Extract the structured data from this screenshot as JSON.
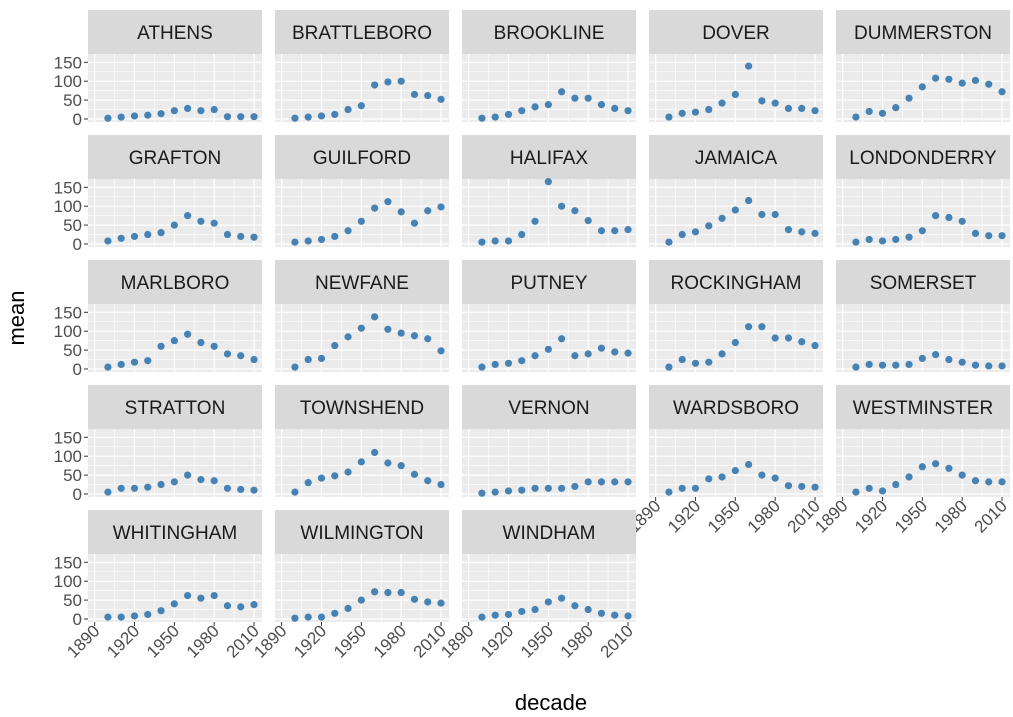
{
  "x_label": "decade",
  "y_label": "mean",
  "scales": {
    "xlim": [
      1885,
      2016
    ],
    "ylim": [
      -8,
      172
    ],
    "xticks": [
      1890,
      1920,
      1950,
      1980,
      2010
    ],
    "yticks": [
      0,
      50,
      100,
      150
    ],
    "color": "#4682b4",
    "grid": true
  },
  "chart_data": [
    {
      "type": "scatter",
      "title": "ATHENS",
      "x": [
        1900,
        1910,
        1920,
        1930,
        1940,
        1950,
        1960,
        1970,
        1980,
        1990,
        2000,
        2010
      ],
      "values": [
        2,
        5,
        8,
        10,
        14,
        22,
        28,
        22,
        25,
        6,
        6,
        6
      ]
    },
    {
      "type": "scatter",
      "title": "BRATTLEBORO",
      "x": [
        1900,
        1910,
        1920,
        1930,
        1940,
        1950,
        1960,
        1970,
        1980,
        1990,
        2000,
        2010
      ],
      "values": [
        2,
        5,
        8,
        12,
        25,
        35,
        90,
        98,
        100,
        65,
        62,
        52
      ]
    },
    {
      "type": "scatter",
      "title": "BROOKLINE",
      "x": [
        1900,
        1910,
        1920,
        1930,
        1940,
        1950,
        1960,
        1970,
        1980,
        1990,
        2000,
        2010
      ],
      "values": [
        2,
        5,
        12,
        22,
        32,
        38,
        72,
        55,
        55,
        38,
        28,
        22
      ]
    },
    {
      "type": "scatter",
      "title": "DOVER",
      "x": [
        1900,
        1910,
        1920,
        1930,
        1940,
        1950,
        1960,
        1970,
        1980,
        1990,
        2000,
        2010
      ],
      "values": [
        5,
        15,
        18,
        25,
        42,
        65,
        140,
        48,
        42,
        28,
        28,
        22
      ]
    },
    {
      "type": "scatter",
      "title": "DUMMERSTON",
      "x": [
        1900,
        1910,
        1920,
        1930,
        1940,
        1950,
        1960,
        1970,
        1980,
        1990,
        2000,
        2010
      ],
      "values": [
        5,
        20,
        15,
        30,
        55,
        85,
        108,
        105,
        95,
        102,
        92,
        72
      ]
    },
    {
      "type": "scatter",
      "title": "GRAFTON",
      "x": [
        1900,
        1910,
        1920,
        1930,
        1940,
        1950,
        1960,
        1970,
        1980,
        1990,
        2000,
        2010
      ],
      "values": [
        8,
        15,
        20,
        25,
        30,
        50,
        75,
        60,
        55,
        25,
        20,
        18
      ]
    },
    {
      "type": "scatter",
      "title": "GUILFORD",
      "x": [
        1900,
        1910,
        1920,
        1930,
        1940,
        1950,
        1960,
        1970,
        1980,
        1990,
        2000,
        2010
      ],
      "values": [
        5,
        8,
        12,
        20,
        35,
        60,
        95,
        112,
        85,
        55,
        88,
        98
      ]
    },
    {
      "type": "scatter",
      "title": "HALIFAX",
      "x": [
        1900,
        1910,
        1920,
        1930,
        1940,
        1950,
        1960,
        1970,
        1980,
        1990,
        2000,
        2010
      ],
      "values": [
        5,
        8,
        8,
        25,
        60,
        165,
        100,
        88,
        62,
        35,
        35,
        38
      ]
    },
    {
      "type": "scatter",
      "title": "JAMAICA",
      "x": [
        1900,
        1910,
        1920,
        1930,
        1940,
        1950,
        1960,
        1970,
        1980,
        1990,
        2000,
        2010
      ],
      "values": [
        5,
        25,
        32,
        48,
        68,
        90,
        115,
        78,
        78,
        38,
        32,
        28
      ]
    },
    {
      "type": "scatter",
      "title": "LONDONDERRY",
      "x": [
        1900,
        1910,
        1920,
        1930,
        1940,
        1950,
        1960,
        1970,
        1980,
        1990,
        2000,
        2010
      ],
      "values": [
        5,
        12,
        8,
        12,
        18,
        35,
        75,
        70,
        60,
        28,
        22,
        22
      ]
    },
    {
      "type": "scatter",
      "title": "MARLBORO",
      "x": [
        1900,
        1910,
        1920,
        1930,
        1940,
        1950,
        1960,
        1970,
        1980,
        1990,
        2000,
        2010
      ],
      "values": [
        5,
        12,
        18,
        22,
        60,
        75,
        92,
        70,
        60,
        40,
        35,
        25
      ]
    },
    {
      "type": "scatter",
      "title": "NEWFANE",
      "x": [
        1900,
        1910,
        1920,
        1930,
        1940,
        1950,
        1960,
        1970,
        1980,
        1990,
        2000,
        2010
      ],
      "values": [
        5,
        25,
        28,
        62,
        85,
        108,
        138,
        105,
        95,
        88,
        80,
        48
      ]
    },
    {
      "type": "scatter",
      "title": "PUTNEY",
      "x": [
        1900,
        1910,
        1920,
        1930,
        1940,
        1950,
        1960,
        1970,
        1980,
        1990,
        2000,
        2010
      ],
      "values": [
        5,
        12,
        15,
        22,
        35,
        52,
        80,
        35,
        40,
        55,
        45,
        42
      ]
    },
    {
      "type": "scatter",
      "title": "ROCKINGHAM",
      "x": [
        1900,
        1910,
        1920,
        1930,
        1940,
        1950,
        1960,
        1970,
        1980,
        1990,
        2000,
        2010
      ],
      "values": [
        5,
        25,
        15,
        18,
        40,
        70,
        112,
        112,
        82,
        82,
        72,
        62
      ]
    },
    {
      "type": "scatter",
      "title": "SOMERSET",
      "x": [
        1900,
        1910,
        1920,
        1930,
        1940,
        1950,
        1960,
        1970,
        1980,
        1990,
        2000,
        2010
      ],
      "values": [
        5,
        12,
        10,
        10,
        12,
        28,
        38,
        25,
        18,
        10,
        8,
        8
      ]
    },
    {
      "type": "scatter",
      "title": "STRATTON",
      "x": [
        1900,
        1910,
        1920,
        1930,
        1940,
        1950,
        1960,
        1970,
        1980,
        1990,
        2000,
        2010
      ],
      "values": [
        5,
        15,
        15,
        18,
        25,
        32,
        50,
        38,
        35,
        15,
        12,
        10
      ]
    },
    {
      "type": "scatter",
      "title": "TOWNSHEND",
      "x": [
        1900,
        1910,
        1920,
        1930,
        1940,
        1950,
        1960,
        1970,
        1980,
        1990,
        2000,
        2010
      ],
      "values": [
        5,
        30,
        42,
        48,
        58,
        85,
        110,
        82,
        75,
        52,
        35,
        25
      ]
    },
    {
      "type": "scatter",
      "title": "VERNON",
      "x": [
        1900,
        1910,
        1920,
        1930,
        1940,
        1950,
        1960,
        1970,
        1980,
        1990,
        2000,
        2010
      ],
      "values": [
        2,
        5,
        8,
        10,
        15,
        15,
        15,
        20,
        32,
        32,
        32,
        32
      ]
    },
    {
      "type": "scatter",
      "title": "WARDSBORO",
      "x": [
        1900,
        1910,
        1920,
        1930,
        1940,
        1950,
        1960,
        1970,
        1980,
        1990,
        2000,
        2010
      ],
      "values": [
        5,
        15,
        15,
        40,
        45,
        62,
        78,
        50,
        42,
        22,
        20,
        18
      ]
    },
    {
      "type": "scatter",
      "title": "WESTMINSTER",
      "x": [
        1900,
        1910,
        1920,
        1930,
        1940,
        1950,
        1960,
        1970,
        1980,
        1990,
        2000,
        2010
      ],
      "values": [
        5,
        15,
        8,
        25,
        45,
        72,
        80,
        68,
        50,
        35,
        32,
        32
      ]
    },
    {
      "type": "scatter",
      "title": "WHITINGHAM",
      "x": [
        1900,
        1910,
        1920,
        1930,
        1940,
        1950,
        1960,
        1970,
        1980,
        1990,
        2000,
        2010
      ],
      "values": [
        5,
        5,
        8,
        12,
        22,
        40,
        62,
        55,
        62,
        35,
        32,
        38
      ]
    },
    {
      "type": "scatter",
      "title": "WILMINGTON",
      "x": [
        1900,
        1910,
        1920,
        1930,
        1940,
        1950,
        1960,
        1970,
        1980,
        1990,
        2000,
        2010
      ],
      "values": [
        2,
        5,
        5,
        15,
        28,
        50,
        72,
        70,
        70,
        52,
        45,
        42
      ]
    },
    {
      "type": "scatter",
      "title": "WINDHAM",
      "x": [
        1900,
        1910,
        1920,
        1930,
        1940,
        1950,
        1960,
        1970,
        1980,
        1990,
        2000,
        2010
      ],
      "values": [
        5,
        10,
        12,
        20,
        25,
        45,
        55,
        35,
        25,
        15,
        10,
        8
      ]
    }
  ]
}
